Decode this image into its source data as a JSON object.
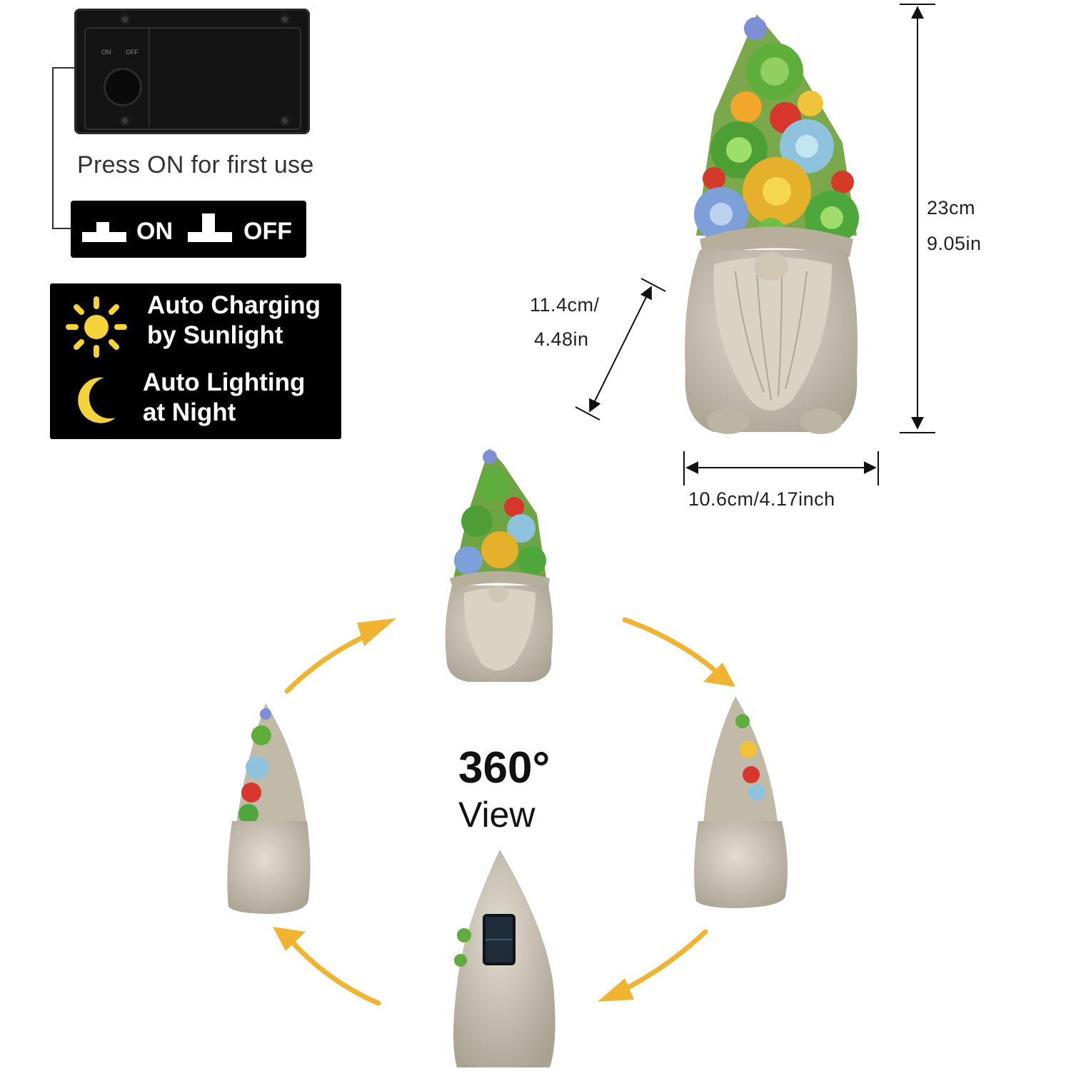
{
  "battery": {
    "on_mini": "ON",
    "off_mini": "OFF",
    "instruction": "Press ON for first use"
  },
  "switch": {
    "on_label": "ON",
    "off_label": "OFF"
  },
  "features": {
    "charging_line1": "Auto Charging",
    "charging_line2": "by Sunlight",
    "lighting_line1": "Auto Lighting",
    "lighting_line2": "at Night",
    "icons": [
      "sun-icon",
      "moon-icon"
    ]
  },
  "dimensions": {
    "height_cm": "23cm",
    "height_in": "9.05in",
    "depth_cm": "11.4cm/",
    "depth_in": "4.48in",
    "width": "10.6cm/4.17inch"
  },
  "rotation": {
    "degrees": "360°",
    "word": "View"
  },
  "colors": {
    "arrow": "#f0b332",
    "stone": "#c9c2b0",
    "panel": "#000000",
    "sun": "#f4d23a"
  }
}
